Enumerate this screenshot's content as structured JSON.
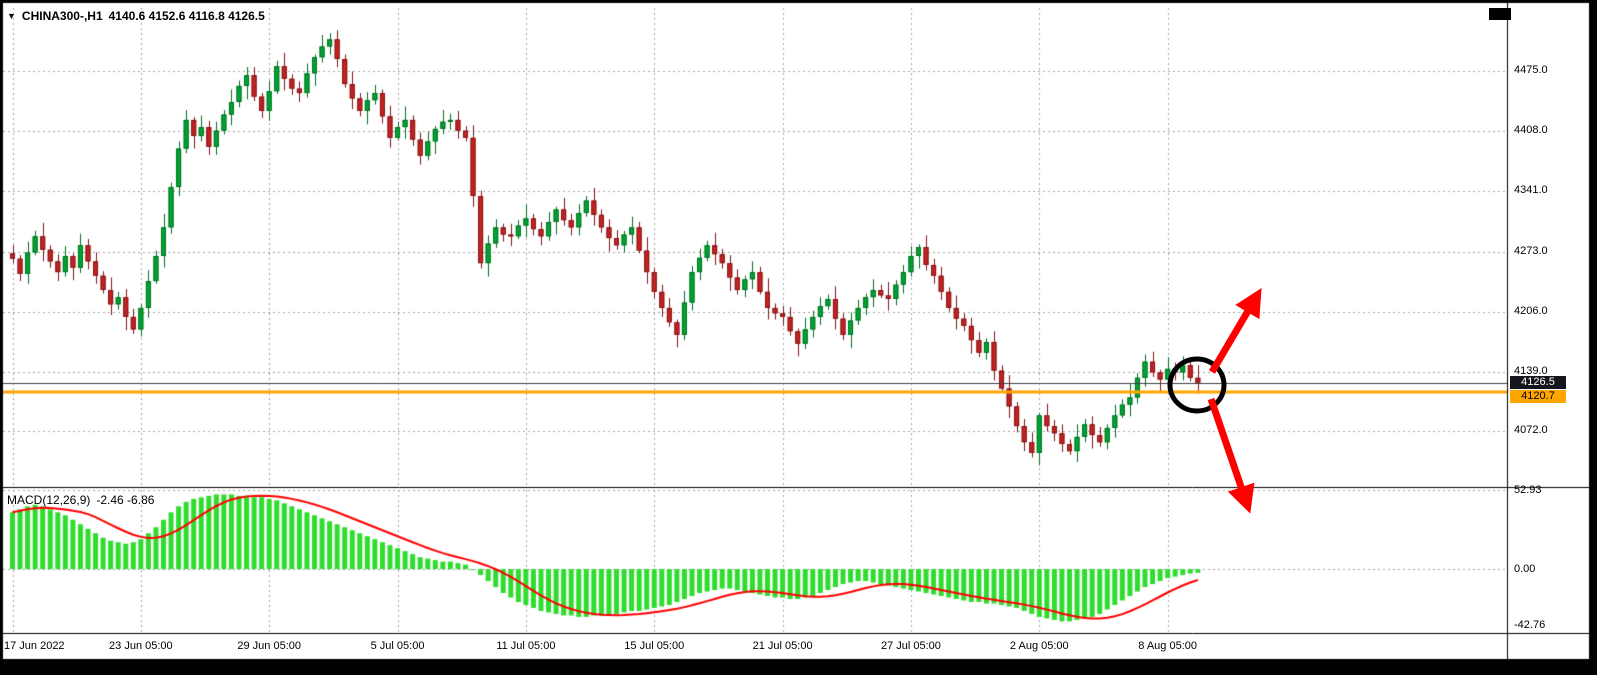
{
  "header": {
    "symbol_period": "CHINA300-,H1",
    "ohlc": "4140.6 4152.6 4116.8 4126.5"
  },
  "icons": {
    "symbol_dropdown": "▼"
  },
  "price_axis": {
    "bid_tag": "4126.5",
    "hline_tag": "4120.7"
  },
  "macd_panel": {
    "label": "MACD(12,26,9)",
    "values": "-2.46 -6.86"
  },
  "colors": {
    "frame": "#000000",
    "panel_bg": "#FFFFFF",
    "grid": "#A6A6A6",
    "up_candle": "#00A432",
    "up_candle_border": "#007022",
    "down_candle": "#C62222",
    "down_candle_border": "#801616",
    "macd_bar": "#2EDD2E",
    "signal_line": "#FF0000",
    "bid_line": "#404040",
    "hline": "#FFA500",
    "annotation_arrow": "#FF0000",
    "annotation_ellipse": "#000000"
  },
  "chart_data": [
    {
      "type": "candlestick",
      "symbol": "CHINA300-",
      "timeframe": "H1",
      "current_bar": {
        "open": 4140.6,
        "high": 4152.6,
        "low": 4116.8,
        "close": 4126.5
      },
      "bid_price": 4126.5,
      "hline_price": 4120.7,
      "ylim": [
        4010,
        4545
      ],
      "y_tick_labels": [
        "4475.0",
        "4408.0",
        "4341.0",
        "4273.0",
        "4206.0",
        "4139.0",
        "4072.0"
      ],
      "x_tick_indices": [
        0,
        17,
        34,
        51,
        68,
        85,
        102,
        119,
        136,
        153
      ],
      "x_tick_labels": [
        "17 Jun 2022",
        "23 Jun 05:00",
        "29 Jun 05:00",
        "5 Jul 05:00",
        "11 Jul 05:00",
        "15 Jul 05:00",
        "21 Jul 05:00",
        "27 Jul 05:00",
        "2 Aug 05:00",
        "8 Aug 05:00"
      ],
      "first_open": 4271,
      "wick_pattern": [
        9,
        4,
        12,
        6,
        15,
        5,
        8,
        11,
        3,
        13,
        7,
        10,
        5,
        14,
        6,
        9
      ],
      "closes": [
        4265,
        4248,
        4272,
        4290,
        4275,
        4262,
        4250,
        4268,
        4255,
        4280,
        4262,
        4246,
        4230,
        4214,
        4222,
        4200,
        4186,
        4210,
        4240,
        4268,
        4300,
        4345,
        4388,
        4420,
        4402,
        4412,
        4390,
        4408,
        4426,
        4440,
        4458,
        4470,
        4446,
        4430,
        4452,
        4480,
        4466,
        4455,
        4450,
        4472,
        4490,
        4502,
        4510,
        4488,
        4460,
        4444,
        4430,
        4442,
        4450,
        4424,
        4400,
        4412,
        4420,
        4398,
        4380,
        4396,
        4410,
        4418,
        4420,
        4408,
        4400,
        4335,
        4260,
        4282,
        4300,
        4292,
        4290,
        4302,
        4310,
        4298,
        4290,
        4306,
        4320,
        4308,
        4300,
        4316,
        4330,
        4314,
        4300,
        4288,
        4280,
        4292,
        4300,
        4274,
        4250,
        4228,
        4210,
        4194,
        4180,
        4216,
        4250,
        4266,
        4280,
        4270,
        4260,
        4244,
        4230,
        4242,
        4250,
        4228,
        4210,
        4204,
        4200,
        4184,
        4170,
        4186,
        4200,
        4212,
        4220,
        4198,
        4180,
        4196,
        4210,
        4222,
        4230,
        4224,
        4220,
        4236,
        4250,
        4268,
        4278,
        4258,
        4246,
        4228,
        4210,
        4198,
        4190,
        4174,
        4160,
        4172,
        4140,
        4120,
        4100,
        4078,
        4060,
        4048,
        4090,
        4078,
        4070,
        4058,
        4050,
        4066,
        4080,
        4068,
        4060,
        4076,
        4090,
        4102,
        4110,
        4132,
        4150,
        4138,
        4130,
        4142,
        4138,
        4146,
        4132,
        4126.5
      ]
    },
    {
      "type": "bar",
      "indicator": "MACD(12,26,9)",
      "main_value": -2.46,
      "signal_value": -6.86,
      "signal_period": 9,
      "ylim": [
        -42.76,
        52.93
      ],
      "y_tick_labels": [
        "52.93",
        "0.00",
        "-42.76"
      ],
      "histogram": [
        38,
        40,
        42,
        43,
        42,
        40,
        38,
        36,
        33,
        30,
        27,
        24,
        21,
        19,
        18,
        17,
        18,
        20,
        24,
        28,
        33,
        38,
        42,
        45,
        47,
        48,
        49,
        50,
        50,
        50,
        49,
        49,
        48,
        48,
        47,
        46,
        44,
        42,
        40,
        38,
        36,
        34,
        32,
        30,
        28,
        26,
        24,
        22,
        20,
        18,
        16,
        14,
        12,
        10,
        8,
        7,
        6,
        5,
        5,
        4,
        3,
        0,
        -4,
        -8,
        -12,
        -16,
        -19,
        -22,
        -24,
        -26,
        -28,
        -29,
        -30,
        -31,
        -31,
        -32,
        -32,
        -31,
        -31,
        -30,
        -30,
        -29,
        -28,
        -28,
        -27,
        -26,
        -25,
        -24,
        -22,
        -20,
        -18,
        -16,
        -15,
        -14,
        -13,
        -13,
        -14,
        -15,
        -16,
        -17,
        -18,
        -19,
        -19,
        -20,
        -20,
        -19,
        -18,
        -16,
        -14,
        -12,
        -10,
        -9,
        -8,
        -8,
        -9,
        -10,
        -11,
        -12,
        -13,
        -14,
        -15,
        -16,
        -17,
        -18,
        -19,
        -20,
        -21,
        -22,
        -22,
        -23,
        -23,
        -24,
        -25,
        -26,
        -28,
        -30,
        -32,
        -33,
        -34,
        -35,
        -35,
        -34,
        -33,
        -32,
        -30,
        -27,
        -24,
        -21,
        -18,
        -15,
        -12,
        -10,
        -8,
        -6,
        -5,
        -4,
        -3,
        -2.46
      ]
    }
  ]
}
